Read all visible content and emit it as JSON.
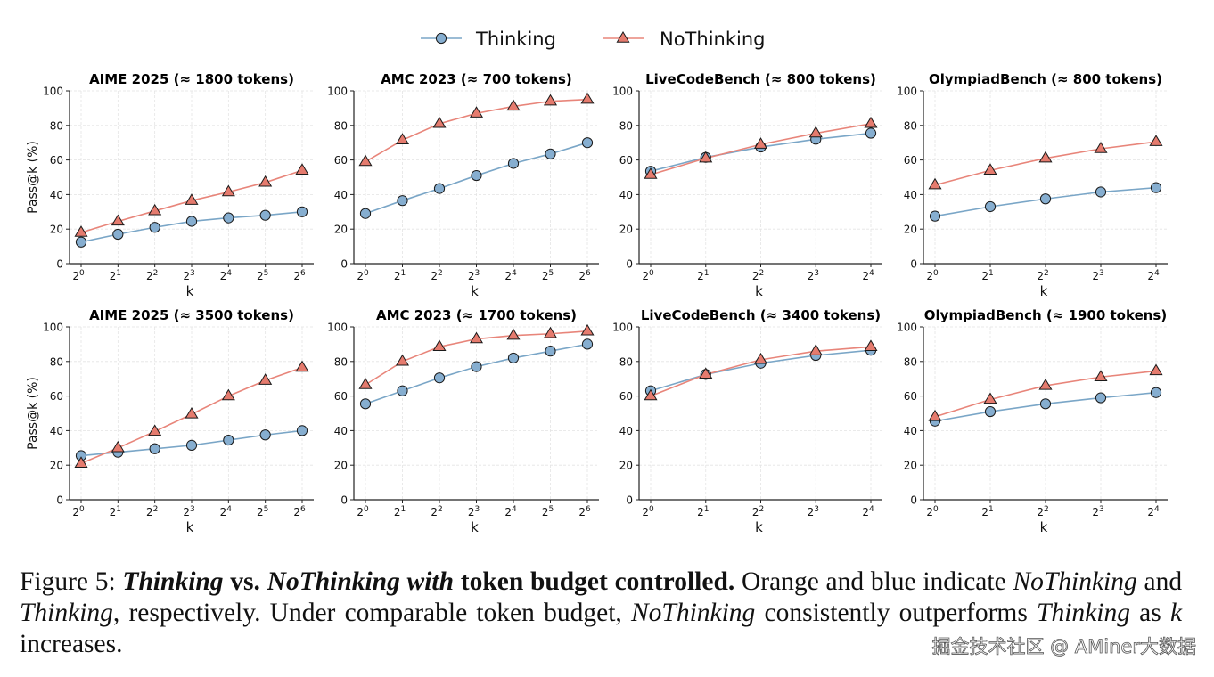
{
  "legend": [
    {
      "name": "Thinking",
      "color": "#7aa6c7",
      "marker_fill": "#86aed0",
      "marker": "circle"
    },
    {
      "name": "NoThinking",
      "color": "#e8857a",
      "marker_fill": "#e57b6e",
      "marker": "triangle"
    }
  ],
  "chart_data": [
    {
      "type": "line",
      "title": "AIME 2025 (≈ 1800 tokens)",
      "xlabel": "k",
      "ylabel": "Pass@k (%)",
      "ylim": [
        0,
        100
      ],
      "yticks": [
        0,
        20,
        40,
        60,
        80,
        100
      ],
      "grid": true,
      "x": [
        "2^0",
        "2^1",
        "2^2",
        "2^3",
        "2^4",
        "2^5",
        "2^6"
      ],
      "series": [
        {
          "name": "Thinking",
          "values": [
            12.5,
            17,
            21,
            24.5,
            26.5,
            28,
            30
          ]
        },
        {
          "name": "NoThinking",
          "values": [
            18,
            24.5,
            30.5,
            36.5,
            41.5,
            47,
            54
          ]
        }
      ]
    },
    {
      "type": "line",
      "title": "AMC 2023 (≈ 700 tokens)",
      "xlabel": "k",
      "ylabel": "",
      "ylim": [
        0,
        100
      ],
      "yticks": [
        0,
        20,
        40,
        60,
        80,
        100
      ],
      "grid": true,
      "x": [
        "2^0",
        "2^1",
        "2^2",
        "2^3",
        "2^4",
        "2^5",
        "2^6"
      ],
      "series": [
        {
          "name": "Thinking",
          "values": [
            29,
            36.5,
            43.5,
            51,
            58,
            63.5,
            70
          ]
        },
        {
          "name": "NoThinking",
          "values": [
            59,
            71.5,
            81,
            87,
            91,
            94,
            95
          ]
        }
      ]
    },
    {
      "type": "line",
      "title": "LiveCodeBench (≈ 800 tokens)",
      "xlabel": "k",
      "ylabel": "",
      "ylim": [
        0,
        100
      ],
      "yticks": [
        0,
        20,
        40,
        60,
        80,
        100
      ],
      "grid": true,
      "x": [
        "2^0",
        "2^1",
        "2^2",
        "2^3",
        "2^4"
      ],
      "series": [
        {
          "name": "Thinking",
          "values": [
            53.5,
            61.5,
            67.5,
            72,
            75.5
          ]
        },
        {
          "name": "NoThinking",
          "values": [
            51.5,
            61,
            69,
            75.5,
            81
          ]
        }
      ]
    },
    {
      "type": "line",
      "title": "OlympiadBench (≈ 800 tokens)",
      "xlabel": "k",
      "ylabel": "",
      "ylim": [
        0,
        100
      ],
      "yticks": [
        0,
        20,
        40,
        60,
        80,
        100
      ],
      "grid": true,
      "x": [
        "2^0",
        "2^1",
        "2^2",
        "2^3",
        "2^4"
      ],
      "series": [
        {
          "name": "Thinking",
          "values": [
            27.5,
            33,
            37.5,
            41.5,
            44
          ]
        },
        {
          "name": "NoThinking",
          "values": [
            45.5,
            54,
            61,
            66.5,
            70.5
          ]
        }
      ]
    },
    {
      "type": "line",
      "title": "AIME 2025 (≈ 3500 tokens)",
      "xlabel": "k",
      "ylabel": "Pass@k (%)",
      "ylim": [
        0,
        100
      ],
      "yticks": [
        0,
        20,
        40,
        60,
        80,
        100
      ],
      "grid": true,
      "x": [
        "2^0",
        "2^1",
        "2^2",
        "2^3",
        "2^4",
        "2^5",
        "2^6"
      ],
      "series": [
        {
          "name": "Thinking",
          "values": [
            25.5,
            27.5,
            29.5,
            31.5,
            34.5,
            37.5,
            40
          ]
        },
        {
          "name": "NoThinking",
          "values": [
            21,
            30,
            39.5,
            49.5,
            60,
            69,
            76.5
          ]
        }
      ]
    },
    {
      "type": "line",
      "title": "AMC 2023 (≈ 1700 tokens)",
      "xlabel": "k",
      "ylabel": "",
      "ylim": [
        0,
        100
      ],
      "yticks": [
        0,
        20,
        40,
        60,
        80,
        100
      ],
      "grid": true,
      "x": [
        "2^0",
        "2^1",
        "2^2",
        "2^3",
        "2^4",
        "2^5",
        "2^6"
      ],
      "series": [
        {
          "name": "Thinking",
          "values": [
            55.5,
            63,
            70.5,
            77,
            82,
            86,
            90
          ]
        },
        {
          "name": "NoThinking",
          "values": [
            66.5,
            80,
            88.5,
            93,
            95,
            96,
            97.5
          ]
        }
      ]
    },
    {
      "type": "line",
      "title": "LiveCodeBench (≈ 3400 tokens)",
      "xlabel": "k",
      "ylabel": "",
      "ylim": [
        0,
        100
      ],
      "yticks": [
        0,
        20,
        40,
        60,
        80,
        100
      ],
      "grid": true,
      "x": [
        "2^0",
        "2^1",
        "2^2",
        "2^3",
        "2^4"
      ],
      "series": [
        {
          "name": "Thinking",
          "values": [
            63,
            72.5,
            79,
            83.5,
            86.5
          ]
        },
        {
          "name": "NoThinking",
          "values": [
            60,
            72.5,
            81,
            86,
            88.5
          ]
        }
      ]
    },
    {
      "type": "line",
      "title": "OlympiadBench (≈ 1900 tokens)",
      "xlabel": "k",
      "ylabel": "",
      "ylim": [
        0,
        100
      ],
      "yticks": [
        0,
        20,
        40,
        60,
        80,
        100
      ],
      "grid": true,
      "x": [
        "2^0",
        "2^1",
        "2^2",
        "2^3",
        "2^4"
      ],
      "series": [
        {
          "name": "Thinking",
          "values": [
            45.5,
            51,
            55.5,
            59,
            62
          ]
        },
        {
          "name": "NoThinking",
          "values": [
            48,
            58,
            66,
            71,
            74.5
          ]
        }
      ]
    }
  ],
  "caption": {
    "label": "Figure 5:",
    "bold_italic_1": "Thinking",
    "bold_1": "vs.",
    "bold_italic_2": "NoThinking with",
    "bold_2": "token budget controlled.",
    "text_1": "Orange and blue indicate",
    "italic_1": "NoThinking",
    "text_2": "and",
    "italic_2": "Thinking",
    "text_3": ", respectively. Under comparable token budget,",
    "italic_3": "NoThinking",
    "text_4": "consistently outperforms",
    "italic_4": "Thinking",
    "text_5": "as",
    "italic_5": "k",
    "text_6": "increases."
  },
  "watermark": "掘金技术社区 @ AMiner大数据"
}
